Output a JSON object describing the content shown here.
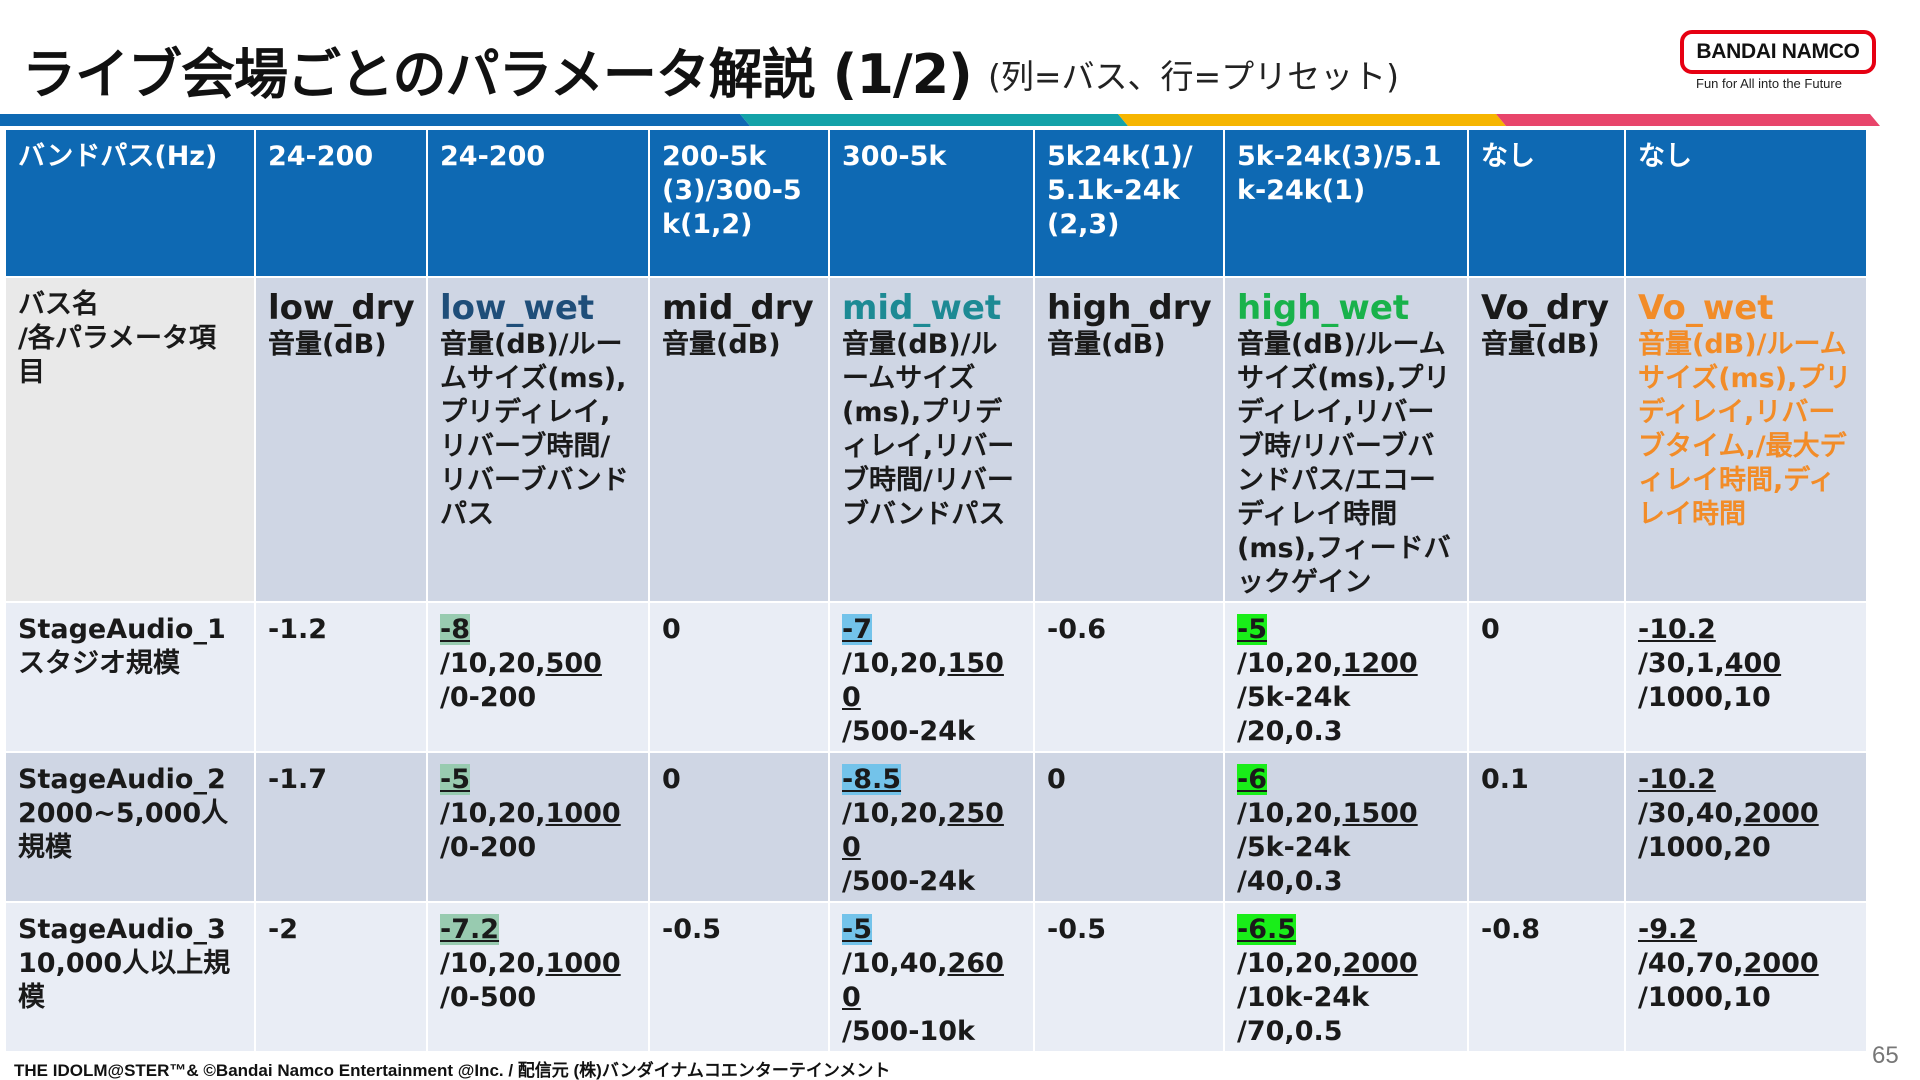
{
  "slide": {
    "title": "ライブ会場ごとのパラメータ解説 (1/2)",
    "subtitle": "(列=バス、行=プリセット)",
    "page_number": "65",
    "footer": "THE IDOLM@STER™& ©Bandai Namco Entertainment @Inc. / 配信元 (株)バンダイナムコエンターテインメント"
  },
  "logo": {
    "text": "BANDAI NAMCO",
    "tagline": "Fun for All into the Future",
    "color": "#e60012"
  },
  "colors": {
    "header_bg": "#0e69b3",
    "band_blue": "#0e69b3",
    "band_teal": "#14a2a8",
    "band_yellow": "#f6b500",
    "band_pink": "#e8456b",
    "highlight_sage": "#98cbb0",
    "highlight_sky": "#73c3ea",
    "highlight_lime": "#19ee19",
    "text_orange": "#f28c28",
    "text_green": "#19b24b"
  },
  "table": {
    "header": {
      "bandpass_label": "バンドパス(Hz)",
      "cols": [
        "24-200",
        "24-200",
        "200-5k(3)/300-5k(1,2)",
        "300-5k",
        "5k24k(1)/5.1k-24k(2,3)",
        "5k-24k(3)/5.1k-24k(1)",
        "なし",
        "なし"
      ]
    },
    "bus_row": {
      "label_line1": "バス名",
      "label_line2": "/各パラメータ項目",
      "buses": [
        "low_dry",
        "low_wet",
        "mid_dry",
        "mid_wet",
        "high_dry",
        "high_wet",
        "Vo_dry",
        "Vo_wet"
      ],
      "descs": [
        "音量(dB)",
        "音量(dB)/ルームサイズ(ms),プリディレイ,リバーブ時間/リバーブバンドパス",
        "音量(dB)",
        "音量(dB)/ルームサイズ(ms),プリディレイ,リバーブ時間/リバーブバンドパス",
        "音量(dB)",
        "音量(dB)/ルームサイズ(ms),プリディレイ,リバーブ時/リバーブバンドパス/エコーディレイ時間(ms),フィードバックゲイン",
        "音量(dB)",
        "音量(dB)/ルームサイズ(ms),プリディレイ,リバーブタイム,/最大ディレイ時間,ディレイ時間"
      ]
    },
    "presets": [
      {
        "name": "StageAudio_1",
        "scale": "スタジオ規模",
        "low_dry": "-1.2",
        "low_wet": [
          "-8",
          "/10,20,",
          "500",
          "/0-200"
        ],
        "mid_dry": "0",
        "mid_wet": [
          "-7",
          "/10,20,",
          "1500",
          "/500-24k"
        ],
        "high_dry": "-0.6",
        "high_wet": [
          "-5",
          "/10,20,",
          "1200",
          "/5k-24k",
          "/20,0.3"
        ],
        "vo_dry": "0",
        "vo_wet": [
          "-10.2",
          "/30,1,",
          "400",
          "/1000,10"
        ]
      },
      {
        "name": "StageAudio_2",
        "scale": "2000~5,000人規模",
        "low_dry": "-1.7",
        "low_wet": [
          "-5",
          "/10,20,",
          "1000",
          "/0-200"
        ],
        "mid_dry": "0",
        "mid_wet": [
          "-8.5",
          "/10,20,",
          "2500",
          "/500-24k"
        ],
        "high_dry": "0",
        "high_wet": [
          "-6",
          "/10,20,",
          "1500",
          "/5k-24k",
          "/40,0.3"
        ],
        "vo_dry": "0.1",
        "vo_wet": [
          "-10.2",
          "/30,40,",
          "2000",
          "/1000,20"
        ]
      },
      {
        "name": "StageAudio_3",
        "scale": "10,000人以上規模",
        "low_dry": "-2",
        "low_wet": [
          "-7.2",
          "/10,20,",
          "1000",
          "/0-500"
        ],
        "mid_dry": "-0.5",
        "mid_wet": [
          "-5",
          "/10,40,",
          "2600",
          "/500-10k"
        ],
        "high_dry": "-0.5",
        "high_wet": [
          "-6.5",
          "/10,20,",
          "2000",
          "/10k-24k",
          "/70,0.5"
        ],
        "vo_dry": "-0.8",
        "vo_wet": [
          "-9.2",
          "/40,70,",
          "2000",
          "/1000,10"
        ]
      }
    ]
  }
}
